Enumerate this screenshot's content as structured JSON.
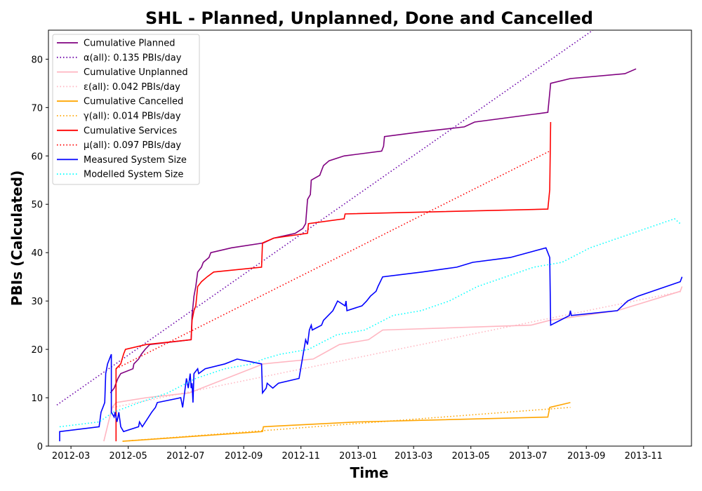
{
  "chart_data": {
    "type": "line",
    "title": "SHL - Planned, Unplanned, Done  and Cancelled",
    "xlabel": "Time",
    "ylabel": "PBIs (Calculated)",
    "xlim": [
      "2012-02-06",
      "2013-12-22"
    ],
    "ylim": [
      0,
      86
    ],
    "x_ticks": [
      "2012-03",
      "2012-05",
      "2012-07",
      "2012-09",
      "2012-11",
      "2013-01",
      "2013-03",
      "2013-05",
      "2013-07",
      "2013-09",
      "2013-11"
    ],
    "y_ticks": [
      0,
      10,
      20,
      30,
      40,
      50,
      60,
      70,
      80
    ],
    "grid": false,
    "legend_position": "top-left",
    "series": [
      {
        "name": "Cumulative Planned",
        "color": "#800080",
        "style": "solid",
        "points": [
          [
            "2012-04-12",
            11
          ],
          [
            "2012-04-16",
            12
          ],
          [
            "2012-04-18",
            13
          ],
          [
            "2012-04-20",
            14
          ],
          [
            "2012-04-23",
            15
          ],
          [
            "2012-05-06",
            16
          ],
          [
            "2012-05-07",
            17
          ],
          [
            "2012-05-12",
            18
          ],
          [
            "2012-05-15",
            19
          ],
          [
            "2012-05-19",
            20
          ],
          [
            "2012-05-24",
            21
          ],
          [
            "2012-07-07",
            22
          ],
          [
            "2012-07-08",
            27
          ],
          [
            "2012-07-10",
            31
          ],
          [
            "2012-07-12",
            33
          ],
          [
            "2012-07-14",
            36
          ],
          [
            "2012-07-18",
            37
          ],
          [
            "2012-07-20",
            38
          ],
          [
            "2012-07-26",
            39
          ],
          [
            "2012-07-28",
            40
          ],
          [
            "2012-08-19",
            41
          ],
          [
            "2012-09-22",
            42
          ],
          [
            "2012-10-03",
            43
          ],
          [
            "2012-10-26",
            44
          ],
          [
            "2012-11-03",
            45
          ],
          [
            "2012-11-06",
            46
          ],
          [
            "2012-11-08",
            51
          ],
          [
            "2012-11-11",
            52
          ],
          [
            "2012-11-12",
            55
          ],
          [
            "2012-11-21",
            56
          ],
          [
            "2012-11-23",
            57
          ],
          [
            "2012-11-25",
            58
          ],
          [
            "2012-12-01",
            59
          ],
          [
            "2012-12-17",
            60
          ],
          [
            "2013-01-26",
            61
          ],
          [
            "2013-01-28",
            62
          ],
          [
            "2013-01-29",
            64
          ],
          [
            "2013-03-10",
            65
          ],
          [
            "2013-04-24",
            66
          ],
          [
            "2013-05-05",
            67
          ],
          [
            "2013-07-22",
            69
          ],
          [
            "2013-07-24",
            73
          ],
          [
            "2013-07-25",
            75
          ],
          [
            "2013-08-15",
            76
          ],
          [
            "2013-10-12",
            77
          ],
          [
            "2013-10-24",
            78
          ]
        ]
      },
      {
        "name": "α(all): 0.135 PBIs/day",
        "color": "#6a00a8",
        "style": "dotted",
        "points": [
          [
            "2012-02-15",
            8.5
          ],
          [
            "2013-09-08",
            86
          ]
        ]
      },
      {
        "name": "Cumulative Unplanned",
        "color": "#ffb6c1",
        "style": "solid",
        "points": [
          [
            "2012-04-05",
            1
          ],
          [
            "2012-04-10",
            5
          ],
          [
            "2012-04-14",
            8
          ],
          [
            "2012-04-18",
            9
          ],
          [
            "2012-05-20",
            10
          ],
          [
            "2012-07-05",
            11
          ],
          [
            "2012-09-22",
            17
          ],
          [
            "2012-11-14",
            18
          ],
          [
            "2012-12-12",
            21
          ],
          [
            "2013-01-12",
            22
          ],
          [
            "2013-01-27",
            24
          ],
          [
            "2013-07-04",
            25
          ],
          [
            "2013-07-24",
            26
          ],
          [
            "2013-10-04",
            28
          ],
          [
            "2013-12-10",
            32
          ],
          [
            "2013-12-12",
            33
          ]
        ]
      },
      {
        "name": "ε(all): 0.042 PBIs/day",
        "color": "#ffb6c1",
        "style": "dotted",
        "points": [
          [
            "2012-04-15",
            8
          ],
          [
            "2013-12-12",
            32
          ]
        ]
      },
      {
        "name": "Cumulative Cancelled",
        "color": "#ffa500",
        "style": "solid",
        "points": [
          [
            "2012-04-25",
            1
          ],
          [
            "2012-09-21",
            3
          ],
          [
            "2012-09-22",
            4
          ],
          [
            "2013-01-01",
            5
          ],
          [
            "2013-07-22",
            6
          ],
          [
            "2013-07-24",
            8
          ],
          [
            "2013-08-15",
            9
          ]
        ]
      },
      {
        "name": "γ(all): 0.014 PBIs/day",
        "color": "#ffa500",
        "style": "dotted",
        "points": [
          [
            "2012-04-25",
            1
          ],
          [
            "2013-08-15",
            8
          ]
        ]
      },
      {
        "name": "Cumulative Services",
        "color": "#ff0000",
        "style": "solid",
        "points": [
          [
            "2012-04-18",
            1
          ],
          [
            "2012-04-18",
            16
          ],
          [
            "2012-04-23",
            17
          ],
          [
            "2012-04-26",
            19
          ],
          [
            "2012-04-28",
            20
          ],
          [
            "2012-05-20",
            21
          ],
          [
            "2012-07-07",
            22
          ],
          [
            "2012-07-08",
            26
          ],
          [
            "2012-07-10",
            28
          ],
          [
            "2012-07-12",
            29
          ],
          [
            "2012-07-14",
            33
          ],
          [
            "2012-07-18",
            34
          ],
          [
            "2012-07-24",
            35
          ],
          [
            "2012-07-31",
            36
          ],
          [
            "2012-09-20",
            37
          ],
          [
            "2012-09-21",
            42
          ],
          [
            "2012-10-03",
            43
          ],
          [
            "2012-11-08",
            44
          ],
          [
            "2012-11-09",
            46
          ],
          [
            "2012-12-17",
            47
          ],
          [
            "2012-12-18",
            48
          ],
          [
            "2013-07-22",
            49
          ],
          [
            "2013-07-24",
            53
          ],
          [
            "2013-07-25",
            67
          ]
        ]
      },
      {
        "name": "μ(all): 0.097 PBIs/day",
        "color": "#ff0000",
        "style": "dotted",
        "points": [
          [
            "2012-04-18",
            16
          ],
          [
            "2013-07-24",
            61
          ]
        ]
      },
      {
        "name": "Measured System Size",
        "color": "#0000ff",
        "style": "solid",
        "points": [
          [
            "2012-02-18",
            1
          ],
          [
            "2012-02-18",
            3
          ],
          [
            "2012-03-31",
            4
          ],
          [
            "2012-04-02",
            7
          ],
          [
            "2012-04-04",
            8
          ],
          [
            "2012-04-06",
            9
          ],
          [
            "2012-04-07",
            15
          ],
          [
            "2012-04-09",
            17
          ],
          [
            "2012-04-13",
            19
          ],
          [
            "2012-04-13",
            7
          ],
          [
            "2012-04-16",
            6
          ],
          [
            "2012-04-17",
            7
          ],
          [
            "2012-04-19",
            5
          ],
          [
            "2012-04-20",
            6
          ],
          [
            "2012-04-21",
            7
          ],
          [
            "2012-04-23",
            4
          ],
          [
            "2012-04-26",
            3
          ],
          [
            "2012-05-12",
            4
          ],
          [
            "2012-05-13",
            5
          ],
          [
            "2012-05-16",
            4
          ],
          [
            "2012-05-26",
            7
          ],
          [
            "2012-05-30",
            8
          ],
          [
            "2012-06-01",
            9
          ],
          [
            "2012-06-26",
            10
          ],
          [
            "2012-06-28",
            8
          ],
          [
            "2012-07-02",
            14
          ],
          [
            "2012-07-04",
            12
          ],
          [
            "2012-07-06",
            15
          ],
          [
            "2012-07-07",
            12
          ],
          [
            "2012-07-08",
            13
          ],
          [
            "2012-07-09",
            9
          ],
          [
            "2012-07-10",
            15
          ],
          [
            "2012-07-14",
            16
          ],
          [
            "2012-07-15",
            15
          ],
          [
            "2012-07-22",
            16
          ],
          [
            "2012-08-12",
            17
          ],
          [
            "2012-08-25",
            18
          ],
          [
            "2012-09-20",
            17
          ],
          [
            "2012-09-21",
            11
          ],
          [
            "2012-09-25",
            12
          ],
          [
            "2012-09-26",
            13
          ],
          [
            "2012-10-02",
            12
          ],
          [
            "2012-10-08",
            13
          ],
          [
            "2012-10-30",
            14
          ],
          [
            "2012-11-06",
            22
          ],
          [
            "2012-11-08",
            21
          ],
          [
            "2012-11-10",
            24
          ],
          [
            "2012-11-12",
            25
          ],
          [
            "2012-11-13",
            24
          ],
          [
            "2012-11-23",
            25
          ],
          [
            "2012-11-25",
            26
          ],
          [
            "2012-11-30",
            27
          ],
          [
            "2012-12-05",
            28
          ],
          [
            "2012-12-10",
            30
          ],
          [
            "2012-12-18",
            29
          ],
          [
            "2012-12-19",
            30
          ],
          [
            "2012-12-20",
            28
          ],
          [
            "2013-01-05",
            29
          ],
          [
            "2013-01-10",
            30
          ],
          [
            "2013-01-14",
            31
          ],
          [
            "2013-01-20",
            32
          ],
          [
            "2013-01-22",
            33
          ],
          [
            "2013-01-27",
            35
          ],
          [
            "2013-03-10",
            36
          ],
          [
            "2013-04-16",
            37
          ],
          [
            "2013-05-03",
            38
          ],
          [
            "2013-06-12",
            39
          ],
          [
            "2013-07-20",
            41
          ],
          [
            "2013-07-24",
            39
          ],
          [
            "2013-07-25",
            25
          ],
          [
            "2013-08-14",
            27
          ],
          [
            "2013-08-15",
            28
          ],
          [
            "2013-08-16",
            27
          ],
          [
            "2013-10-04",
            28
          ],
          [
            "2013-10-15",
            30
          ],
          [
            "2013-10-26",
            31
          ],
          [
            "2013-12-10",
            34
          ],
          [
            "2013-12-12",
            35
          ]
        ]
      },
      {
        "name": "Modelled System Size",
        "color": "#00ffff",
        "style": "dotted",
        "points": [
          [
            "2012-02-18",
            4
          ],
          [
            "2012-03-31",
            5
          ],
          [
            "2012-04-15",
            7
          ],
          [
            "2012-05-13",
            9
          ],
          [
            "2012-06-12",
            11
          ],
          [
            "2012-07-12",
            14
          ],
          [
            "2012-08-12",
            16
          ],
          [
            "2012-09-10",
            17
          ],
          [
            "2012-09-22",
            18
          ],
          [
            "2012-10-10",
            19
          ],
          [
            "2012-11-09",
            20
          ],
          [
            "2012-12-09",
            23
          ],
          [
            "2013-01-08",
            24
          ],
          [
            "2013-02-07",
            27
          ],
          [
            "2013-03-09",
            28
          ],
          [
            "2013-04-08",
            30
          ],
          [
            "2013-05-08",
            33
          ],
          [
            "2013-06-07",
            35
          ],
          [
            "2013-07-07",
            37
          ],
          [
            "2013-08-06",
            38
          ],
          [
            "2013-09-05",
            41
          ],
          [
            "2013-10-05",
            43
          ],
          [
            "2013-11-04",
            45
          ],
          [
            "2013-12-04",
            47
          ],
          [
            "2013-12-10",
            46
          ]
        ]
      }
    ]
  }
}
